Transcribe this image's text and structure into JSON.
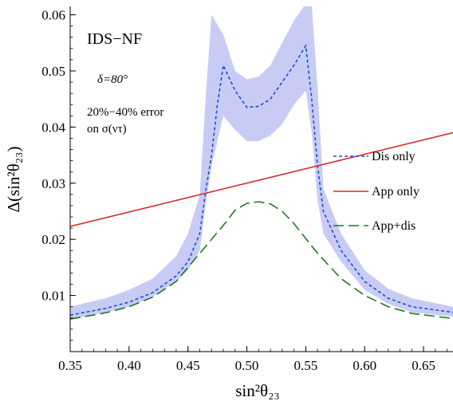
{
  "chart_data": {
    "type": "line",
    "title": "",
    "xlabel": "sin²θ₂₃",
    "ylabel": "Δ(sin²θ₂₃)",
    "xlim": [
      0.35,
      0.675
    ],
    "ylim": [
      0.0,
      0.0615
    ],
    "grid": false,
    "legend_position": "right",
    "x_ticks": [
      "0.35",
      "0.40",
      "0.45",
      "0.50",
      "0.55",
      "0.60",
      "0.65"
    ],
    "y_ticks": [
      "0.01",
      "0.02",
      "0.03",
      "0.04",
      "0.05",
      "0.06"
    ],
    "annotations": {
      "experiment": "IDS−NF",
      "delta": "δ=80°",
      "error_line1": "20%−40% error",
      "error_line2": "on σ(ντ)"
    },
    "series": [
      {
        "name": "Dis only",
        "style": "short-dash",
        "color": "#1a4fd6",
        "x": [
          0.35,
          0.38,
          0.4,
          0.42,
          0.44,
          0.45,
          0.46,
          0.465,
          0.47,
          0.475,
          0.48,
          0.49,
          0.5,
          0.51,
          0.52,
          0.53,
          0.54,
          0.55,
          0.555,
          0.56,
          0.565,
          0.58,
          0.6,
          0.62,
          0.64,
          0.675
        ],
        "y": [
          0.0065,
          0.0077,
          0.0088,
          0.0105,
          0.0135,
          0.016,
          0.021,
          0.0285,
          0.035,
          0.044,
          0.051,
          0.0465,
          0.0435,
          0.0437,
          0.045,
          0.048,
          0.051,
          0.0545,
          0.045,
          0.033,
          0.025,
          0.018,
          0.0125,
          0.0095,
          0.008,
          0.007
        ]
      },
      {
        "name": "App only",
        "style": "solid",
        "color": "#d42a2a",
        "x": [
          0.35,
          0.675
        ],
        "y": [
          0.0223,
          0.039
        ]
      },
      {
        "name": "App+dis",
        "style": "long-dash",
        "color": "#1e7a1e",
        "x": [
          0.35,
          0.38,
          0.4,
          0.42,
          0.44,
          0.46,
          0.48,
          0.49,
          0.5,
          0.51,
          0.52,
          0.53,
          0.54,
          0.56,
          0.58,
          0.6,
          0.62,
          0.64,
          0.675
        ],
        "y": [
          0.0058,
          0.0069,
          0.008,
          0.0097,
          0.0125,
          0.0175,
          0.0225,
          0.0252,
          0.0264,
          0.0267,
          0.0263,
          0.025,
          0.0228,
          0.0175,
          0.013,
          0.01,
          0.008,
          0.0068,
          0.0059
        ]
      }
    ],
    "band": {
      "color": "#c8ccf5",
      "x": [
        0.35,
        0.38,
        0.4,
        0.42,
        0.44,
        0.45,
        0.46,
        0.465,
        0.47,
        0.48,
        0.49,
        0.5,
        0.51,
        0.52,
        0.53,
        0.54,
        0.55,
        0.555,
        0.56,
        0.565,
        0.58,
        0.6,
        0.62,
        0.64,
        0.675
      ],
      "upper": [
        0.008,
        0.0095,
        0.011,
        0.013,
        0.017,
        0.021,
        0.028,
        0.045,
        0.06,
        0.0565,
        0.05,
        0.0485,
        0.049,
        0.051,
        0.055,
        0.059,
        0.062,
        0.062,
        0.047,
        0.029,
        0.021,
        0.0145,
        0.0112,
        0.0095,
        0.008
      ],
      "lower": [
        0.0058,
        0.007,
        0.008,
        0.0098,
        0.0125,
        0.0145,
        0.018,
        0.026,
        0.033,
        0.042,
        0.0395,
        0.0375,
        0.0375,
        0.0385,
        0.0405,
        0.044,
        0.0465,
        0.039,
        0.027,
        0.021,
        0.016,
        0.011,
        0.0085,
        0.007,
        0.0062
      ]
    }
  }
}
